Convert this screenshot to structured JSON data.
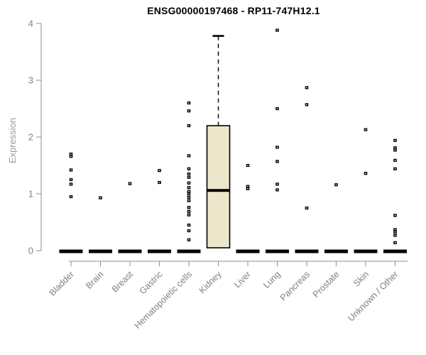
{
  "chart_data": {
    "type": "boxplot",
    "title": "ENSG00000197468 - RP11-747H12.1",
    "ylabel": "Expression",
    "xlabel": "",
    "ylim": [
      0,
      4
    ],
    "yticks": [
      "0",
      "1",
      "2",
      "3",
      "4"
    ],
    "grid": false,
    "legend": "none",
    "categories": [
      "Bladder",
      "Brain",
      "Breast",
      "Gastric",
      "Hematopoietic cells",
      "Kidney",
      "Liver",
      "Lung",
      "Pancreas",
      "Prostate",
      "Skin",
      "Unknown / Other"
    ],
    "series": [
      {
        "category": "Bladder",
        "zero_bar": true,
        "points": [
          1.7,
          1.66,
          1.42,
          1.25,
          1.17,
          0.95
        ]
      },
      {
        "category": "Brain",
        "zero_bar": true,
        "points": [
          0.93
        ]
      },
      {
        "category": "Breast",
        "zero_bar": true,
        "points": [
          1.18
        ]
      },
      {
        "category": "Gastric",
        "zero_bar": true,
        "points": [
          1.41,
          1.2
        ]
      },
      {
        "category": "Hematopoietic cells",
        "zero_bar": true,
        "points": [
          2.6,
          2.46,
          2.2,
          1.67,
          1.44,
          1.35,
          1.29,
          1.19,
          1.11,
          1.04,
          1.0,
          0.94,
          0.88,
          0.76,
          0.69,
          0.63,
          0.45,
          0.35,
          0.19
        ]
      },
      {
        "category": "Kidney",
        "zero_bar": false,
        "points": [],
        "box": {
          "whisker_high": 3.78,
          "q3": 2.2,
          "median": 1.06,
          "q1": 0.05,
          "whisker_low": 0.05
        }
      },
      {
        "category": "Liver",
        "zero_bar": true,
        "points": [
          1.5,
          1.13,
          1.09
        ]
      },
      {
        "category": "Lung",
        "zero_bar": true,
        "points": [
          3.88,
          2.5,
          1.82,
          1.57,
          1.17,
          1.07
        ]
      },
      {
        "category": "Pancreas",
        "zero_bar": true,
        "points": [
          2.87,
          2.57,
          0.75
        ]
      },
      {
        "category": "Prostate",
        "zero_bar": true,
        "points": [
          1.16
        ]
      },
      {
        "category": "Skin",
        "zero_bar": true,
        "points": [
          2.13,
          1.36
        ]
      },
      {
        "category": "Unknown / Other",
        "zero_bar": true,
        "points": [
          1.94,
          1.81,
          1.77,
          1.59,
          1.44,
          0.62,
          0.37,
          0.33,
          0.27,
          0.14
        ]
      }
    ],
    "colors": {
      "box_fill": "#ECE7CB",
      "box_stroke": "#000000",
      "point": "#000000",
      "point_center": "#ffffff",
      "zero_bar": "#000000",
      "axis": "#8c8c8c",
      "tick_label": "#808080",
      "category_label": "#7f7f7f",
      "title": "#000000"
    }
  }
}
